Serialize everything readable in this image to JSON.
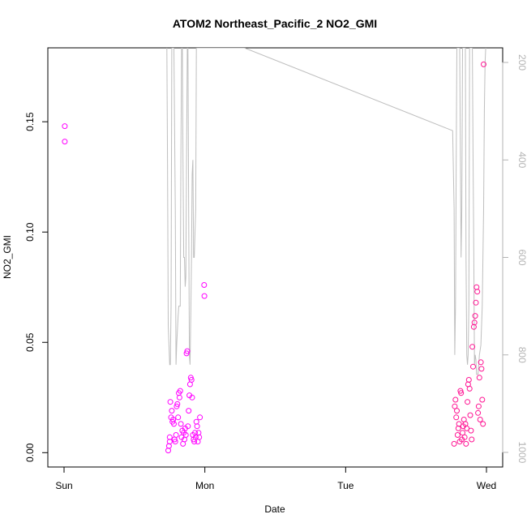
{
  "chart_data": {
    "type": "scatter",
    "title": "ATOM2 Northeast_Pacific_2 NO2_GMI",
    "xlabel": "Date",
    "ylabel": "NO2_GMI",
    "xlim": [
      0,
      3
    ],
    "ylim": [
      -0.0065,
      0.1835
    ],
    "y2lim": [
      1030,
      170
    ],
    "x_ticks": [
      {
        "value": 0,
        "label": "Sun"
      },
      {
        "value": 1,
        "label": "Mon"
      },
      {
        "value": 2,
        "label": "Tue"
      },
      {
        "value": 3,
        "label": "Wed"
      }
    ],
    "y_ticks": [
      {
        "value": 0,
        "label": "0.00"
      },
      {
        "value": 0.05,
        "label": "0.05"
      },
      {
        "value": 0.1,
        "label": "0.10"
      },
      {
        "value": 0.15,
        "label": "0.15"
      }
    ],
    "y2_ticks": [
      {
        "value": 200,
        "label": "200"
      },
      {
        "value": 400,
        "label": "400"
      },
      {
        "value": 600,
        "label": "600"
      },
      {
        "value": 800,
        "label": "800"
      },
      {
        "value": 1000,
        "label": "1000"
      }
    ],
    "grid": false,
    "colors": {
      "points_early": "#ff00ff",
      "points_late": "#ff1493",
      "pressure_line": "#bebebe",
      "axis": "#000000",
      "right_axis": "#b3b3b3"
    },
    "series": [
      {
        "kind": "scatter",
        "points": [
          [
            0.005,
            0.148
          ],
          [
            0.005,
            0.141
          ],
          [
            0.74,
            0.001
          ],
          [
            0.745,
            0.003
          ],
          [
            0.75,
            0.005
          ],
          [
            0.75,
            0.007
          ],
          [
            0.755,
            0.023
          ],
          [
            0.76,
            0.016
          ],
          [
            0.765,
            0.019
          ],
          [
            0.77,
            0.014
          ],
          [
            0.775,
            0.015
          ],
          [
            0.78,
            0.013
          ],
          [
            0.785,
            0.006
          ],
          [
            0.79,
            0.005
          ],
          [
            0.795,
            0.008
          ],
          [
            0.8,
            0.021
          ],
          [
            0.805,
            0.022
          ],
          [
            0.81,
            0.016
          ],
          [
            0.815,
            0.027
          ],
          [
            0.82,
            0.025
          ],
          [
            0.825,
            0.028
          ],
          [
            0.83,
            0.013
          ],
          [
            0.835,
            0.007
          ],
          [
            0.84,
            0.01
          ],
          [
            0.845,
            0.004
          ],
          [
            0.85,
            0.009
          ],
          [
            0.855,
            0.006
          ],
          [
            0.86,
            0.011
          ],
          [
            0.865,
            0.008
          ],
          [
            0.87,
            0.045
          ],
          [
            0.875,
            0.046
          ],
          [
            0.88,
            0.012
          ],
          [
            0.885,
            0.019
          ],
          [
            0.89,
            0.026
          ],
          [
            0.895,
            0.031
          ],
          [
            0.9,
            0.034
          ],
          [
            0.905,
            0.033
          ],
          [
            0.91,
            0.025
          ],
          [
            0.915,
            0.008
          ],
          [
            0.92,
            0.006
          ],
          [
            0.925,
            0.005
          ],
          [
            0.93,
            0.009
          ],
          [
            0.935,
            0.007
          ],
          [
            0.94,
            0.014
          ],
          [
            0.945,
            0.012
          ],
          [
            0.95,
            0.005
          ],
          [
            0.955,
            0.009
          ],
          [
            0.96,
            0.007
          ],
          [
            0.965,
            0.016
          ],
          [
            0.995,
            0.076
          ],
          [
            0.997,
            0.071
          ],
          [
            2.77,
            0.004
          ],
          [
            2.775,
            0.021
          ],
          [
            2.78,
            0.024
          ],
          [
            2.785,
            0.016
          ],
          [
            2.79,
            0.019
          ],
          [
            2.795,
            0.008
          ],
          [
            2.8,
            0.011
          ],
          [
            2.805,
            0.013
          ],
          [
            2.81,
            0.005
          ],
          [
            2.815,
            0.028
          ],
          [
            2.82,
            0.027
          ],
          [
            2.825,
            0.006
          ],
          [
            2.83,
            0.009
          ],
          [
            2.835,
            0.012
          ],
          [
            2.84,
            0.015
          ],
          [
            2.845,
            0.007
          ],
          [
            2.85,
            0.013
          ],
          [
            2.855,
            0.004
          ],
          [
            2.86,
            0.011
          ],
          [
            2.865,
            0.023
          ],
          [
            2.87,
            0.031
          ],
          [
            2.875,
            0.033
          ],
          [
            2.88,
            0.029
          ],
          [
            2.885,
            0.017
          ],
          [
            2.89,
            0.01
          ],
          [
            2.895,
            0.006
          ],
          [
            2.9,
            0.048
          ],
          [
            2.905,
            0.039
          ],
          [
            2.91,
            0.057
          ],
          [
            2.915,
            0.059
          ],
          [
            2.92,
            0.062
          ],
          [
            2.925,
            0.068
          ],
          [
            2.93,
            0.075
          ],
          [
            2.935,
            0.073
          ],
          [
            2.94,
            0.018
          ],
          [
            2.945,
            0.021
          ],
          [
            2.95,
            0.034
          ],
          [
            2.955,
            0.015
          ],
          [
            2.96,
            0.041
          ],
          [
            2.965,
            0.038
          ],
          [
            2.97,
            0.024
          ],
          [
            2.975,
            0.013
          ],
          [
            2.98,
            0.176
          ]
        ]
      },
      {
        "kind": "line",
        "axis": "right",
        "points": [
          [
            0.73,
            170
          ],
          [
            0.735,
            400
          ],
          [
            0.74,
            740
          ],
          [
            0.75,
            820
          ],
          [
            0.755,
            820
          ],
          [
            0.76,
            700
          ],
          [
            0.765,
            170
          ],
          [
            0.77,
            170
          ],
          [
            0.78,
            170
          ],
          [
            0.79,
            500
          ],
          [
            0.795,
            820
          ],
          [
            0.8,
            780
          ],
          [
            0.81,
            720
          ],
          [
            0.815,
            700
          ],
          [
            0.82,
            700
          ],
          [
            0.825,
            700
          ],
          [
            0.83,
            400
          ],
          [
            0.835,
            170
          ],
          [
            0.84,
            170
          ],
          [
            0.845,
            400
          ],
          [
            0.85,
            600
          ],
          [
            0.855,
            600
          ],
          [
            0.86,
            660
          ],
          [
            0.865,
            640
          ],
          [
            0.87,
            400
          ],
          [
            0.875,
            170
          ],
          [
            0.88,
            170
          ],
          [
            0.885,
            500
          ],
          [
            0.89,
            800
          ],
          [
            0.895,
            820
          ],
          [
            0.9,
            720
          ],
          [
            0.905,
            600
          ],
          [
            0.91,
            430
          ],
          [
            0.915,
            400
          ],
          [
            0.92,
            600
          ],
          [
            0.925,
            600
          ],
          [
            0.935,
            500
          ],
          [
            0.94,
            170
          ],
          [
            0.945,
            170
          ],
          [
            0.95,
            170
          ],
          [
            0.98,
            170
          ],
          [
            1.0,
            170
          ],
          [
            1.01,
            170
          ],
          [
            1.05,
            170
          ],
          [
            1.28,
            170
          ],
          [
            2.76,
            340
          ],
          [
            2.77,
            500
          ],
          [
            2.775,
            800
          ],
          [
            2.78,
            700
          ],
          [
            2.785,
            400
          ],
          [
            2.79,
            170
          ],
          [
            2.8,
            170
          ],
          [
            2.81,
            170
          ],
          [
            2.815,
            400
          ],
          [
            2.82,
            600
          ],
          [
            2.825,
            500
          ],
          [
            2.83,
            170
          ],
          [
            2.84,
            170
          ],
          [
            2.85,
            170
          ],
          [
            2.855,
            600
          ],
          [
            2.86,
            800
          ],
          [
            2.865,
            820
          ],
          [
            2.87,
            800
          ],
          [
            2.875,
            700
          ],
          [
            2.88,
            170
          ],
          [
            2.89,
            170
          ],
          [
            2.9,
            170
          ],
          [
            2.905,
            400
          ],
          [
            2.91,
            600
          ],
          [
            2.915,
            820
          ],
          [
            2.92,
            800
          ],
          [
            2.925,
            810
          ],
          [
            2.93,
            840
          ],
          [
            2.94,
            840
          ],
          [
            2.95,
            800
          ],
          [
            2.96,
            780
          ],
          [
            2.97,
            700
          ],
          [
            2.98,
            500
          ],
          [
            2.985,
            300
          ],
          [
            2.99,
            200
          ],
          [
            2.995,
            170
          ]
        ]
      }
    ]
  }
}
